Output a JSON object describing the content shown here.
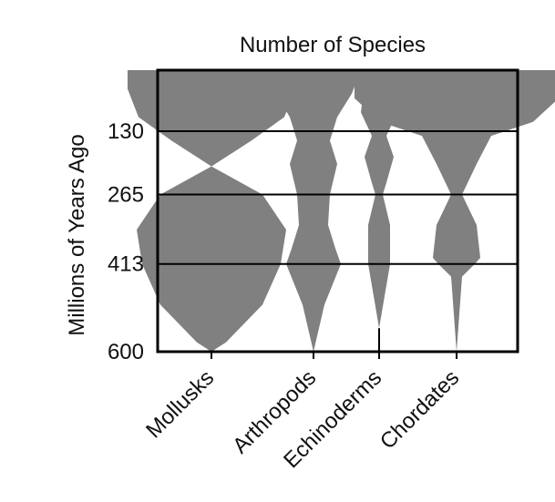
{
  "chart_data": {
    "type": "spindle",
    "title": "Number of Species",
    "ylabel": "Millions of Years Ago",
    "yticks": [
      130,
      265,
      413,
      600
    ],
    "ylim": [
      0,
      600
    ],
    "categories": [
      "Mollusks",
      "Arthropods",
      "Echinoderms",
      "Chordates"
    ],
    "profiles": [
      {
        "name": "Mollusks",
        "points": [
          [
            0,
            92
          ],
          [
            40,
            92
          ],
          [
            100,
            80
          ],
          [
            150,
            44
          ],
          [
            205,
            0
          ],
          [
            265,
            56
          ],
          [
            340,
            82
          ],
          [
            413,
            76
          ],
          [
            500,
            56
          ],
          [
            580,
            16
          ],
          [
            600,
            0
          ]
        ]
      },
      {
        "name": "Arthropods",
        "points": [
          [
            0,
            52
          ],
          [
            50,
            42
          ],
          [
            100,
            26
          ],
          [
            150,
            18
          ],
          [
            200,
            26
          ],
          [
            265,
            18
          ],
          [
            330,
            16
          ],
          [
            380,
            24
          ],
          [
            413,
            30
          ],
          [
            500,
            12
          ],
          [
            600,
            0
          ]
        ]
      },
      {
        "name": "Echinoderms",
        "points": [
          [
            0,
            4
          ],
          [
            30,
            16
          ],
          [
            90,
            20
          ],
          [
            140,
            8
          ],
          [
            185,
            16
          ],
          [
            240,
            8
          ],
          [
            265,
            4
          ],
          [
            330,
            12
          ],
          [
            413,
            12
          ],
          [
            550,
            0
          ],
          [
            600,
            0
          ]
        ]
      },
      {
        "name": "Chordates",
        "points": [
          [
            0,
            112
          ],
          [
            60,
            112
          ],
          [
            110,
            84
          ],
          [
            140,
            38
          ],
          [
            200,
            22
          ],
          [
            265,
            6
          ],
          [
            330,
            22
          ],
          [
            400,
            26
          ],
          [
            413,
            20
          ],
          [
            440,
            6
          ],
          [
            600,
            0
          ]
        ]
      }
    ],
    "colors": {
      "fill": "#808080",
      "axis": "#000000",
      "gridline": "#000000"
    },
    "grid": false
  }
}
